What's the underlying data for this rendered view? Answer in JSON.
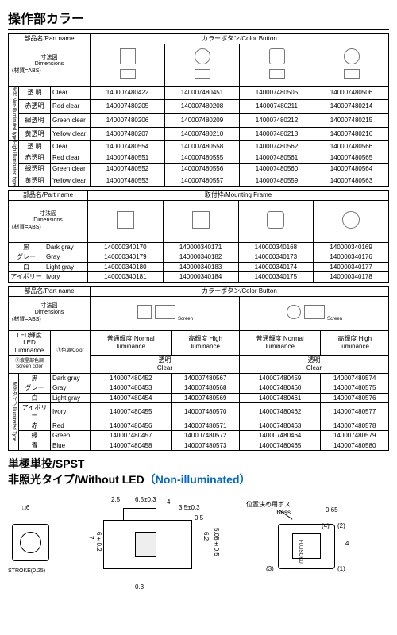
{
  "title": "操作部カラー",
  "headers": {
    "partname": "部品名/Part name",
    "color_button": "カラーボタン/Color Button",
    "mounting_frame": "取付枠/Mounting Frame",
    "dimensions": "寸法図\nDimensions",
    "material": "(材質=ABS)",
    "led_luminance": "LED輝度 LED luminance",
    "screen_color": "②液晶部色調\nScreen color",
    "body_color": "①色調/Color",
    "normal_lum": "普通輝度 Normal luminance",
    "high_lum": "高輝度 High luminance",
    "clear_top": "透明\nClear"
  },
  "vert_labels": {
    "non_illum": "照光 Non-illuminuted type",
    "high_illum": "High Illuminated type",
    "illum_type": "照光タイプ Illuminated Type"
  },
  "table1": {
    "rows_a": [
      {
        "jp": "透 明",
        "en": "Clear",
        "v": [
          "140007480422",
          "140007480451",
          "140007480505",
          "140007480506"
        ]
      },
      {
        "jp": "赤透明",
        "en": "Red clear",
        "v": [
          "140007480205",
          "140007480208",
          "140007480211",
          "140007480214"
        ]
      },
      {
        "jp": "緑透明",
        "en": "Green clear",
        "v": [
          "140007480206",
          "140007480209",
          "140007480212",
          "140007480215"
        ]
      },
      {
        "jp": "黄透明",
        "en": "Yellow clear",
        "v": [
          "140007480207",
          "140007480210",
          "140007480213",
          "140007480216"
        ]
      }
    ],
    "rows_b": [
      {
        "jp": "透 明",
        "en": "Clear",
        "v": [
          "140007480554",
          "140007480558",
          "140007480562",
          "140007480566"
        ]
      },
      {
        "jp": "赤透明",
        "en": "Red clear",
        "v": [
          "140007480551",
          "140007480555",
          "140007480561",
          "140007480565"
        ]
      },
      {
        "jp": "緑透明",
        "en": "Green clear",
        "v": [
          "140007480552",
          "140007480556",
          "140007480560",
          "140007480564"
        ]
      },
      {
        "jp": "黄透明",
        "en": "Yellow clear",
        "v": [
          "140007480553",
          "140007480557",
          "140007480559",
          "140007480563"
        ]
      }
    ]
  },
  "table2": {
    "rows": [
      {
        "jp": "黒",
        "en": "Dark gray",
        "v": [
          "140000340170",
          "140000340171",
          "140000340168",
          "140000340169"
        ]
      },
      {
        "jp": "グレー",
        "en": "Gray",
        "v": [
          "140000340179",
          "140000340182",
          "140000340173",
          "140000340176"
        ]
      },
      {
        "jp": "白",
        "en": "Light gray",
        "v": [
          "140000340180",
          "140000340183",
          "140000340174",
          "140000340177"
        ]
      },
      {
        "jp": "アイボリー",
        "en": "Ivory",
        "v": [
          "140000340181",
          "140000340184",
          "140000340175",
          "140000340178"
        ]
      }
    ]
  },
  "table3": {
    "rows": [
      {
        "jp": "黒",
        "en": "Dark gray",
        "v": [
          "140007480452",
          "140007480567",
          "140007480459",
          "140007480574"
        ]
      },
      {
        "jp": "グレー",
        "en": "Gray",
        "v": [
          "140007480453",
          "140007480568",
          "140007480460",
          "140007480575"
        ]
      },
      {
        "jp": "白",
        "en": "Light gray",
        "v": [
          "140007480454",
          "140007480569",
          "140007480461",
          "140007480576"
        ]
      },
      {
        "jp": "アイボリー",
        "en": "Ivory",
        "v": [
          "140007480455",
          "140007480570",
          "140007480462",
          "140007480577"
        ]
      },
      {
        "jp": "赤",
        "en": "Red",
        "v": [
          "140007480456",
          "140007480571",
          "140007480463",
          "140007480578"
        ]
      },
      {
        "jp": "緑",
        "en": "Green",
        "v": [
          "140007480457",
          "140007480572",
          "140007480464",
          "140007480579"
        ]
      },
      {
        "jp": "青",
        "en": "Blue",
        "v": [
          "140007480458",
          "140007480573",
          "140007480465",
          "140007480580"
        ]
      }
    ]
  },
  "section2": {
    "line1": "単極単投/SPST",
    "line2_jp": "非照光タイプ/Without LED",
    "line2_paren": "（Non-illuminated）"
  },
  "diagram": {
    "d1": "□6",
    "d2": "2.5",
    "d3": "6.5±0.3",
    "d4": "4",
    "d5": "3.5±0.3",
    "d6": "0.5",
    "stroke": "STROKE(0.25)",
    "d7": "7",
    "d8": "6±0.2",
    "d9": "0.3",
    "d10": "6.2",
    "d11": "5.08±0.5",
    "boss": "位置決め用ボス\nBoss",
    "d12": "0.65",
    "d13": "4",
    "brand": "FUJISOKU",
    "p1": "(1)",
    "p2": "(2)",
    "p3": "(3)",
    "p4": "(4)"
  }
}
